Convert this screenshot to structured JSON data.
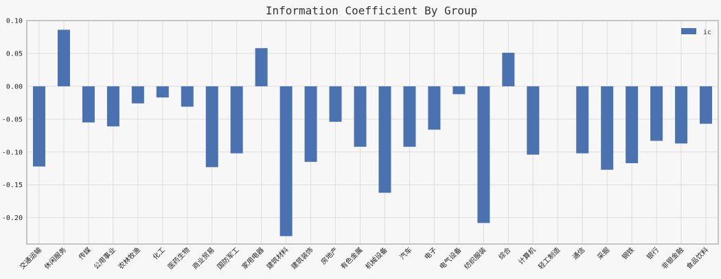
{
  "chart_data": {
    "type": "bar",
    "title": "Information Coefficient By Group",
    "xlabel": "",
    "ylabel": "",
    "ylim": [
      -0.24,
      0.1
    ],
    "yticks": [
      0.1,
      0.05,
      0.0,
      -0.05,
      -0.1,
      -0.15,
      -0.2
    ],
    "ytick_labels": [
      "0.10",
      "0.05",
      "0.00",
      "-0.05",
      "-0.10",
      "-0.15",
      "-0.20"
    ],
    "grid": true,
    "legend_position": "top-right",
    "categories": [
      "交通运输",
      "休闲服务",
      "传媒",
      "公用事业",
      "农林牧渔",
      "化工",
      "医药生物",
      "商业贸易",
      "国防军工",
      "家用电器",
      "建筑材料",
      "建筑装饰",
      "房地产",
      "有色金属",
      "机械设备",
      "汽车",
      "电子",
      "电气设备",
      "纺织服装",
      "综合",
      "计算机",
      "轻工制造",
      "通信",
      "采掘",
      "钢铁",
      "银行",
      "非银金融",
      "食品饮料"
    ],
    "series": [
      {
        "name": "ic",
        "color": "#4a72b0",
        "values": [
          -0.122,
          0.086,
          -0.055,
          -0.061,
          -0.026,
          -0.017,
          -0.031,
          -0.123,
          -0.102,
          0.058,
          -0.228,
          -0.115,
          -0.054,
          -0.092,
          -0.162,
          -0.092,
          -0.066,
          -0.012,
          -0.208,
          0.051,
          -0.104,
          0.0,
          -0.102,
          -0.127,
          -0.117,
          -0.083,
          -0.087,
          -0.057
        ]
      }
    ]
  }
}
